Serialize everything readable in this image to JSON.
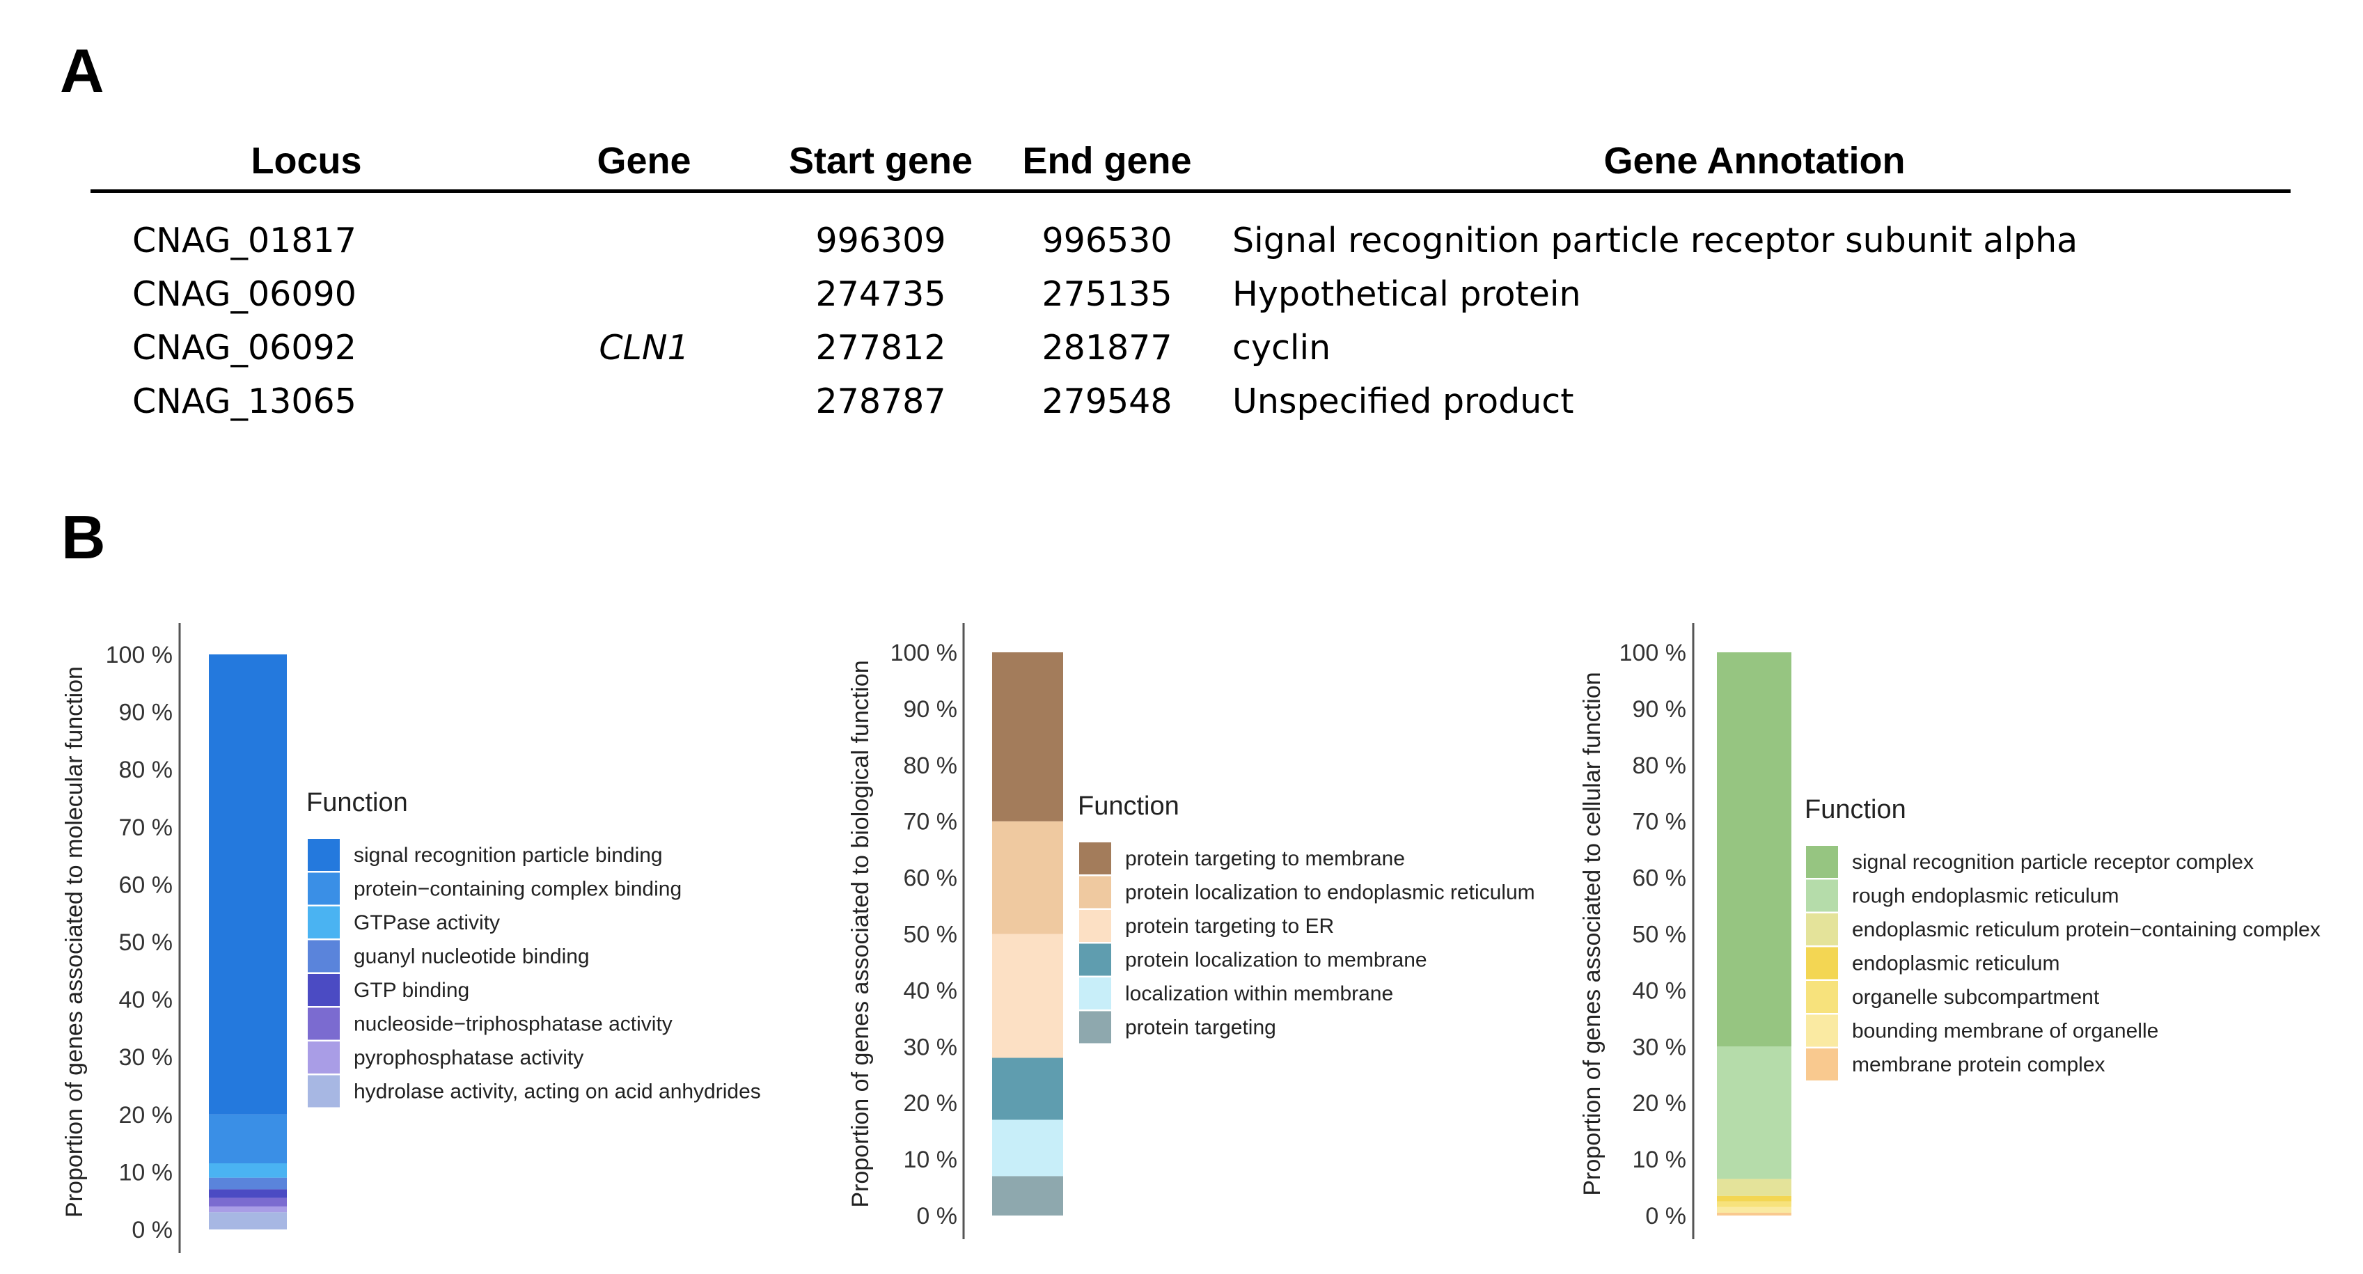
{
  "panel_a": {
    "letter": "A",
    "headers": [
      "Locus",
      "Gene",
      "Start gene",
      "End gene",
      "Gene Annotation"
    ],
    "rows": [
      {
        "locus": "CNAG_01817",
        "gene": "",
        "start": "996309",
        "end": "996530",
        "annotation": "Signal recognition particle receptor subunit alpha"
      },
      {
        "locus": "CNAG_06090",
        "gene": "",
        "start": "274735",
        "end": "275135",
        "annotation": "Hypothetical protein"
      },
      {
        "locus": "CNAG_06092",
        "gene": "CLN1",
        "start": "277812",
        "end": "281877",
        "annotation": "cyclin"
      },
      {
        "locus": "CNAG_13065",
        "gene": "",
        "start": "278787",
        "end": "279548",
        "annotation": "Unspecified product"
      }
    ]
  },
  "panel_b": {
    "letter": "B"
  },
  "chart_data": [
    {
      "type": "bar",
      "stacked": true,
      "ylabel": "Proportion of genes associated to molecular function",
      "ylim": [
        0,
        100
      ],
      "yticks": [
        "0 %",
        "10 %",
        "20 %",
        "30 %",
        "40 %",
        "50 %",
        "60 %",
        "70 %",
        "80 %",
        "90 %",
        "100 %"
      ],
      "legend_title": "Function",
      "series": [
        {
          "name": "hydrolase activity, acting on acid anhydrides",
          "value": 3,
          "color": "#a7b7e3"
        },
        {
          "name": "pyrophosphatase activity",
          "value": 1,
          "color": "#a99de6"
        },
        {
          "name": "nucleoside−triphosphatase activity",
          "value": 1.5,
          "color": "#7b6bd0"
        },
        {
          "name": "GTP binding",
          "value": 1.5,
          "color": "#4b4bc3"
        },
        {
          "name": "guanyl nucleotide binding",
          "value": 2,
          "color": "#5a84db"
        },
        {
          "name": "GTPase activity",
          "value": 2.5,
          "color": "#4ab3f2"
        },
        {
          "name": "protein−containing complex binding",
          "value": 8.5,
          "color": "#3a8fe6"
        },
        {
          "name": "signal recognition particle binding",
          "value": 80,
          "color": "#2479dd"
        }
      ]
    },
    {
      "type": "bar",
      "stacked": true,
      "ylabel": "Proportion of genes associated to biological function",
      "ylim": [
        0,
        100
      ],
      "yticks": [
        "0 %",
        "10 %",
        "20 %",
        "30 %",
        "40 %",
        "50 %",
        "60 %",
        "70 %",
        "80 %",
        "90 %",
        "100 %"
      ],
      "legend_title": "Function",
      "series": [
        {
          "name": "protein targeting",
          "value": 7,
          "color": "#8ea8ae"
        },
        {
          "name": "localization within membrane",
          "value": 10,
          "color": "#c8eef9"
        },
        {
          "name": "protein localization to membrane",
          "value": 11,
          "color": "#5f9daf"
        },
        {
          "name": "protein targeting to ER",
          "value": 22,
          "color": "#fce0c4"
        },
        {
          "name": "protein localization to endoplasmic reticulum",
          "value": 20,
          "color": "#efc9a0"
        },
        {
          "name": "protein targeting to membrane",
          "value": 30,
          "color": "#a37c5b"
        }
      ]
    },
    {
      "type": "bar",
      "stacked": true,
      "ylabel": "Proportion of genes associated to cellular function",
      "ylim": [
        0,
        100
      ],
      "yticks": [
        "0 %",
        "10 %",
        "20 %",
        "30 %",
        "40 %",
        "50 %",
        "60 %",
        "70 %",
        "80 %",
        "90 %",
        "100 %"
      ],
      "legend_title": "Function",
      "series": [
        {
          "name": "membrane protein complex",
          "value": 0.5,
          "color": "#f9c98f"
        },
        {
          "name": "bounding membrane of organelle",
          "value": 1,
          "color": "#faeaa2"
        },
        {
          "name": "organelle subcompartment",
          "value": 1,
          "color": "#f7e27c"
        },
        {
          "name": "endoplasmic reticulum",
          "value": 1,
          "color": "#f3d653"
        },
        {
          "name": "endoplasmic reticulum protein−containing complex",
          "value": 3,
          "color": "#e4e39a"
        },
        {
          "name": "rough endoplasmic reticulum",
          "value": 23.5,
          "color": "#b5dcaa"
        },
        {
          "name": "signal recognition particle receptor complex",
          "value": 70,
          "color": "#96c581"
        }
      ]
    }
  ]
}
